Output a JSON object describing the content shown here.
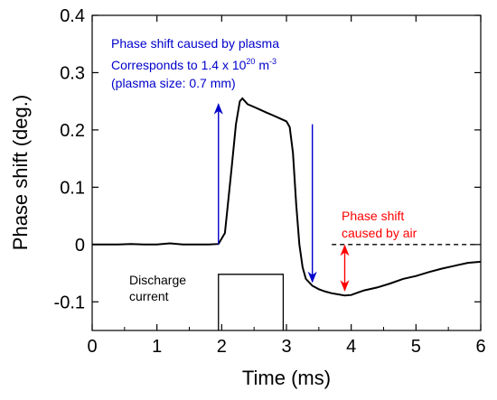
{
  "chart_data": {
    "type": "line",
    "xlabel": "Time (ms)",
    "ylabel": "Phase shift (deg.)",
    "xlim": [
      0,
      6
    ],
    "ylim": [
      -0.15,
      0.4
    ],
    "xticks": [
      0,
      1,
      2,
      3,
      4,
      5,
      6
    ],
    "xtick_labels": [
      "0",
      "1",
      "2",
      "3",
      "4",
      "5",
      "6"
    ],
    "yticks": [
      0.4,
      0.3,
      0.2,
      0.1,
      0,
      -0.1
    ],
    "ytick_labels": [
      "0.4",
      "0.3",
      "0.2",
      "0.1",
      "0",
      "-0.1"
    ],
    "grid": false,
    "series": [
      {
        "color": "#000000",
        "x": [
          0,
          0.2,
          0.4,
          0.6,
          0.8,
          1.0,
          1.2,
          1.4,
          1.6,
          1.8,
          1.95,
          2.05,
          2.15,
          2.22,
          2.28,
          2.32,
          2.4,
          2.5,
          2.6,
          2.7,
          2.8,
          2.9,
          3.0,
          3.05,
          3.1,
          3.15,
          3.2,
          3.25,
          3.3,
          3.4,
          3.5,
          3.6,
          3.7,
          3.8,
          3.9,
          4.0,
          4.1,
          4.2,
          4.4,
          4.6,
          4.8,
          5.0,
          5.2,
          5.4,
          5.6,
          5.8,
          6.0
        ],
        "y": [
          0.0,
          0.0,
          0.0,
          0.001,
          0.0,
          0.0,
          0.002,
          0.0,
          0.0,
          0.0,
          0.001,
          0.02,
          0.13,
          0.21,
          0.25,
          0.255,
          0.245,
          0.24,
          0.235,
          0.23,
          0.225,
          0.22,
          0.215,
          0.205,
          0.16,
          0.07,
          0.0,
          -0.04,
          -0.06,
          -0.072,
          -0.078,
          -0.082,
          -0.085,
          -0.087,
          -0.089,
          -0.088,
          -0.084,
          -0.08,
          -0.075,
          -0.068,
          -0.06,
          -0.055,
          -0.048,
          -0.042,
          -0.037,
          -0.032,
          -0.03
        ]
      }
    ],
    "annotations": {
      "plasma_line1": "Phase shift caused by plasma",
      "plasma_line2_pre": "Corresponds to 1.4 x 10",
      "plasma_line2_exp": "20",
      "plasma_line2_unit": " m",
      "plasma_line2_unit_exp": "-3",
      "plasma_line3": "(plasma size: 0.7 mm)",
      "air_line1": "Phase shift",
      "air_line2": "caused by air",
      "discharge_line1": "Discharge",
      "discharge_line2": "current"
    },
    "annotation_colors": {
      "plasma": "#0000cc",
      "air": "#ff0000",
      "discharge": "#000000"
    }
  }
}
